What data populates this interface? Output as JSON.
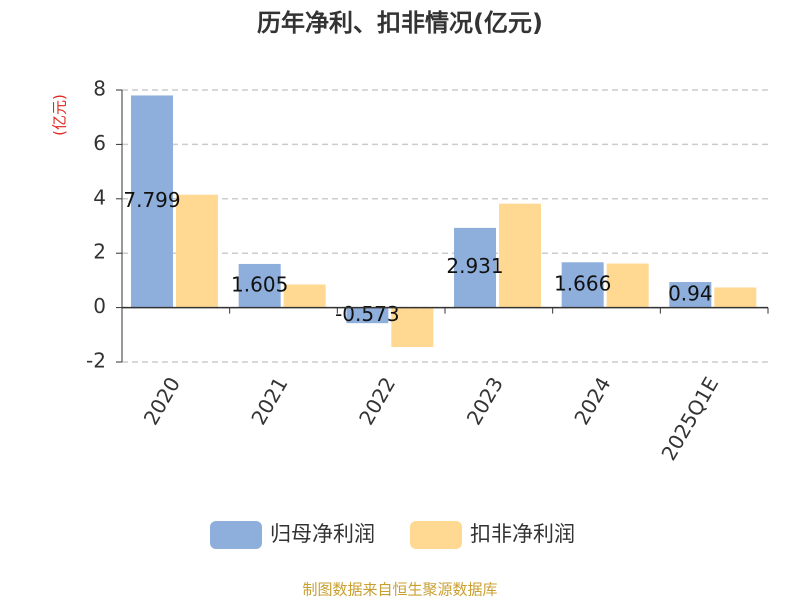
{
  "chart_data": {
    "type": "bar",
    "title": "历年净利、扣非情况(亿元)",
    "y_label": "(亿元)",
    "source": "制图数据来自恒生聚源数据库",
    "categories": [
      "2020",
      "2021",
      "2022",
      "2023",
      "2024",
      "2025Q1E"
    ],
    "series": [
      {
        "name": "归母净利润",
        "color": "#8eaedb",
        "values": [
          7.799,
          1.605,
          -0.573,
          2.931,
          1.666,
          0.94
        ],
        "show_labels": true
      },
      {
        "name": "扣非净利润",
        "color": "#ffd891",
        "values": [
          4.15,
          0.85,
          -1.45,
          3.82,
          1.62,
          0.74
        ],
        "show_labels": false
      }
    ],
    "ylim": [
      -2,
      8
    ],
    "yticks": [
      -2,
      0,
      2,
      4,
      6,
      8
    ],
    "grid": true
  }
}
